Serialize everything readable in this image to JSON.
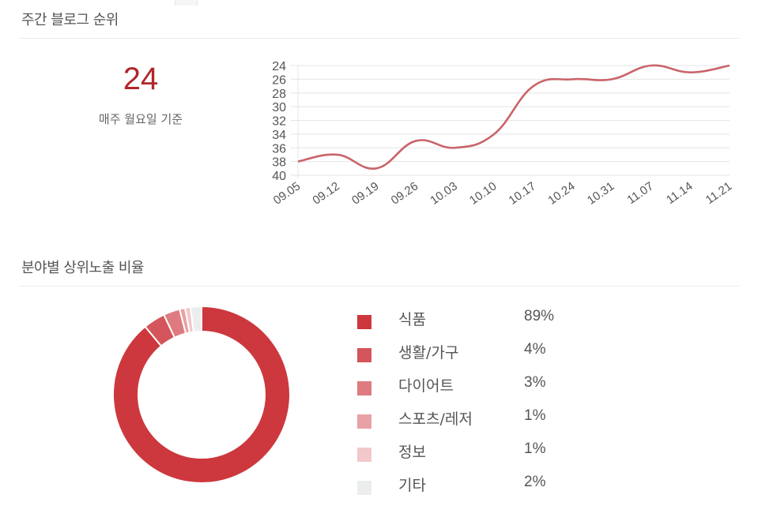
{
  "rank_section": {
    "title": "주간 블로그 순위",
    "current_rank": "24",
    "note": "매주 월요일 기준"
  },
  "share_section": {
    "title": "분야별 상위노출 비율"
  },
  "colors": {
    "accent": "#b0262a",
    "line": "#c9646a",
    "grid": "#e5e5e5"
  },
  "chart_data": [
    {
      "type": "line",
      "title": "주간 블로그 순위",
      "x": [
        "09.05",
        "09.12",
        "09.19",
        "09.26",
        "10.03",
        "10.10",
        "10.17",
        "10.24",
        "10.31",
        "11.07",
        "11.14",
        "11.21"
      ],
      "series": [
        {
          "name": "순위",
          "values": [
            38,
            37,
            39,
            35,
            36,
            34,
            27,
            26,
            26,
            24,
            25,
            24
          ]
        }
      ],
      "yticks": [
        "24",
        "26",
        "28",
        "30",
        "32",
        "34",
        "36",
        "38",
        "40"
      ],
      "ylim": [
        24,
        40
      ],
      "y_inverted": true,
      "xlabel": "",
      "ylabel": "",
      "grid": true,
      "legend": "none"
    },
    {
      "type": "pie",
      "subtype": "donut",
      "title": "분야별 상위노출 비율",
      "categories": [
        "식품",
        "생활/가구",
        "다이어트",
        "스포츠/레저",
        "정보",
        "기타"
      ],
      "values": [
        89,
        4,
        3,
        1,
        1,
        2
      ],
      "labels": [
        "89%",
        "4%",
        "3%",
        "1%",
        "1%",
        "2%"
      ],
      "colors": [
        "#cc383d",
        "#d4555b",
        "#de7b80",
        "#e8a1a5",
        "#f2c8ca",
        "#ecedef"
      ],
      "legend": "right"
    }
  ]
}
